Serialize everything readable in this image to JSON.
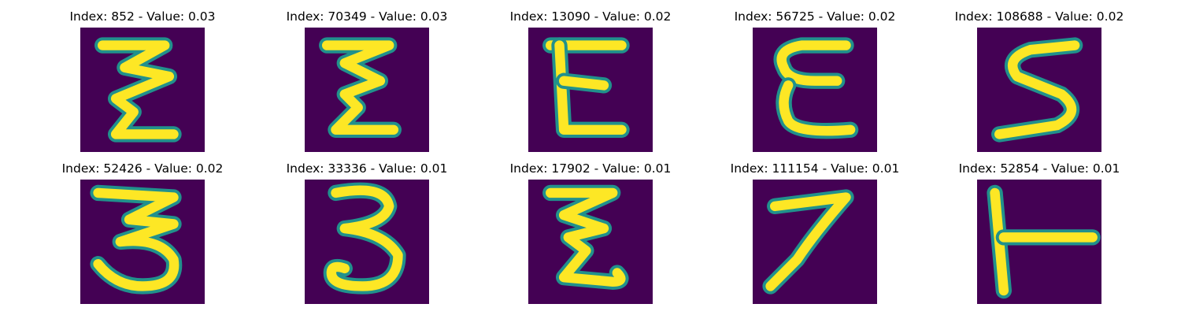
{
  "figure": {
    "background_color": "#ffffff",
    "colormap": "viridis",
    "image_background_color": "#440154",
    "stroke_color": "#fde725",
    "stroke_edge_color": "#21918c",
    "panels": [
      {
        "title": "Index: 852 - Value: 0.03",
        "glyph": "zigzag-z"
      },
      {
        "title": "Index: 70349 - Value: 0.03",
        "glyph": "zigzag-e"
      },
      {
        "title": "Index: 13090 - Value: 0.02",
        "glyph": "letter-e"
      },
      {
        "title": "Index: 56725 - Value: 0.02",
        "glyph": "curly-e"
      },
      {
        "title": "Index: 108688 - Value: 0.02",
        "glyph": "letter-s"
      },
      {
        "title": "Index: 52426 - Value: 0.02",
        "glyph": "digit-3-flat"
      },
      {
        "title": "Index: 33336 - Value: 0.01",
        "glyph": "digit-3-loop"
      },
      {
        "title": "Index: 17902 - Value: 0.01",
        "glyph": "zigzag-e-tail"
      },
      {
        "title": "Index: 111154 - Value: 0.01",
        "glyph": "digit-7"
      },
      {
        "title": "Index: 52854 - Value: 0.01",
        "glyph": "letter-t-rotated"
      }
    ]
  }
}
